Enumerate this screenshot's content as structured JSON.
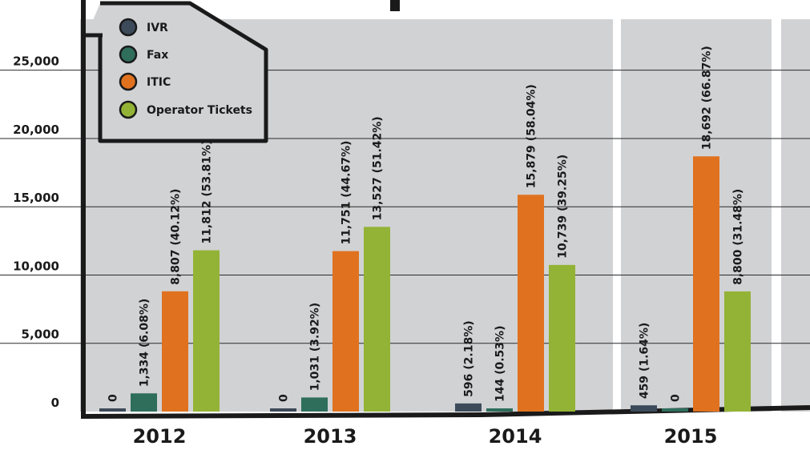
{
  "chart_data": {
    "type": "bar",
    "categories": [
      "2012",
      "2013",
      "2014",
      "2015"
    ],
    "ylim": [
      0,
      28500
    ],
    "yticks": [
      0,
      5000,
      10000,
      15000,
      20000,
      25000
    ],
    "ytick_labels": [
      "0",
      "5,000",
      "10,000",
      "15,000",
      "20,000",
      "25,000"
    ],
    "grid": true,
    "legend_position": "top-left",
    "series": [
      {
        "name": "IVR",
        "color": "#3d4a5a",
        "values": [
          0,
          0,
          596,
          459
        ],
        "labels": [
          "0",
          "0",
          "596 (2.18%)",
          "459 (1.64%)"
        ]
      },
      {
        "name": "Fax",
        "color": "#2e6e5a",
        "values": [
          1334,
          1031,
          144,
          0
        ],
        "labels": [
          "1,334 (6.08%)",
          "1,031 (3.92%)",
          "144 (0.53%)",
          "0"
        ]
      },
      {
        "name": "ITIC",
        "color": "#e0721f",
        "values": [
          8807,
          11751,
          15879,
          18692
        ],
        "labels": [
          "8,807 (40.12%)",
          "11,751 (44.67%)",
          "15,879 (58.04%)",
          "18,692 (66.87%)"
        ]
      },
      {
        "name": "Operator Tickets",
        "color": "#93b336",
        "values": [
          11812,
          13527,
          10739,
          8800
        ],
        "labels": [
          "11,812 (53.81%)",
          "13,527 (51.42%)",
          "10,739 (39.25%)",
          "8,800 (31.48%)"
        ]
      }
    ]
  },
  "colors": {
    "panel_background": "#d1d2d4",
    "axis": "#1a1a1a",
    "legend_background": "#d1d2d4"
  }
}
